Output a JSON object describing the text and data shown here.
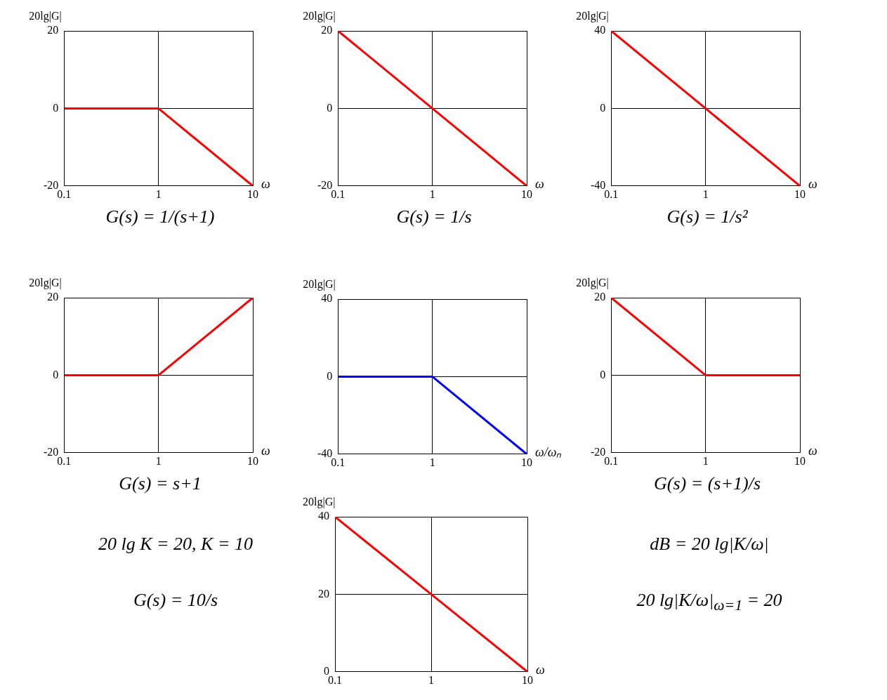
{
  "chart_data": [
    {
      "type": "line",
      "ylabel": "20lg|G|",
      "xlabel": "ω",
      "x": [
        0.1,
        1,
        10
      ],
      "series": [
        {
          "color": "#ff0000",
          "values": [
            0,
            0,
            -20
          ]
        }
      ],
      "xlim": [
        0.1,
        10
      ],
      "xticks": [
        0.1,
        1,
        10
      ],
      "ylim": [
        -20,
        20
      ],
      "yticks": [
        -20,
        0,
        20
      ],
      "log": "x",
      "grid": true,
      "legend": false,
      "marker": "none",
      "line_style": "solid",
      "annotations": [
        "G(s) = 1/(s+1)"
      ]
    },
    {
      "type": "line",
      "ylabel": "20lg|G|",
      "xlabel": "ω",
      "x": [
        0.1,
        1,
        10
      ],
      "series": [
        {
          "color": "#ff0000",
          "values": [
            20,
            0,
            -20
          ]
        }
      ],
      "xlim": [
        0.1,
        10
      ],
      "xticks": [
        0.1,
        1,
        10
      ],
      "ylim": [
        -20,
        20
      ],
      "yticks": [
        -20,
        0,
        20
      ],
      "log": "x",
      "grid": true,
      "legend": false,
      "marker": "none",
      "line_style": "solid",
      "annotations": [
        "G(s) = 1/s"
      ]
    },
    {
      "type": "line",
      "ylabel": "20lg|G|",
      "xlabel": "ω",
      "x": [
        0.1,
        1,
        10
      ],
      "series": [
        {
          "color": "#ff0000",
          "values": [
            40,
            0,
            -40
          ]
        }
      ],
      "xlim": [
        0.1,
        10
      ],
      "xticks": [
        0.1,
        1,
        10
      ],
      "ylim": [
        -40,
        40
      ],
      "yticks": [
        -40,
        0,
        40
      ],
      "log": "x",
      "grid": true,
      "legend": false,
      "marker": "none",
      "line_style": "solid",
      "annotations": [
        "G(s) = 1/s²"
      ]
    },
    {
      "type": "line",
      "ylabel": "20lg|G|",
      "xlabel": "ω",
      "x": [
        0.1,
        1,
        10
      ],
      "series": [
        {
          "color": "#ff0000",
          "values": [
            0,
            0,
            20
          ]
        }
      ],
      "xlim": [
        0.1,
        10
      ],
      "xticks": [
        0.1,
        1,
        10
      ],
      "ylim": [
        -20,
        20
      ],
      "yticks": [
        -20,
        0,
        20
      ],
      "log": "x",
      "grid": true,
      "legend": false,
      "marker": "none",
      "line_style": "solid",
      "annotations": [
        "G(s) = s+1"
      ]
    },
    {
      "type": "line",
      "ylabel": "20lg|G|",
      "xlabel": "ω/ωₙ",
      "x": [
        0.1,
        1,
        10
      ],
      "series": [
        {
          "color": "#0000ff",
          "values": [
            0,
            0,
            -40
          ]
        }
      ],
      "xlim": [
        0.1,
        10
      ],
      "xticks": [
        0.1,
        1,
        10
      ],
      "ylim": [
        -40,
        40
      ],
      "yticks": [
        -40,
        0,
        40
      ],
      "log": "x",
      "grid": true,
      "legend": false,
      "marker": "none",
      "line_style": "solid"
    },
    {
      "type": "line",
      "ylabel": "20lg|G|",
      "xlabel": "ω",
      "x": [
        0.1,
        1,
        10
      ],
      "series": [
        {
          "color": "#ff0000",
          "values": [
            20,
            0,
            0
          ]
        }
      ],
      "xlim": [
        0.1,
        10
      ],
      "xticks": [
        0.1,
        1,
        10
      ],
      "ylim": [
        -20,
        20
      ],
      "yticks": [
        -20,
        0,
        20
      ],
      "log": "x",
      "grid": true,
      "legend": false,
      "marker": "none",
      "line_style": "solid",
      "annotations": [
        "G(s) = (s+1)/s"
      ]
    },
    {
      "type": "line",
      "ylabel": "20lg|G|",
      "xlabel": "ω",
      "x": [
        0.1,
        1,
        10
      ],
      "series": [
        {
          "color": "#ff0000",
          "values": [
            40,
            20,
            0
          ]
        }
      ],
      "xlim": [
        0.1,
        10
      ],
      "xticks": [
        0.1,
        1,
        10
      ],
      "ylim": [
        0,
        40
      ],
      "yticks": [
        0,
        20,
        40
      ],
      "log": "x",
      "grid": true,
      "legend": false,
      "marker": "none",
      "line_style": "solid",
      "annotations": [
        "20 lg K = 20, K = 10",
        "G(s) = 10/s",
        "dB = 20 lg|K/ω|",
        "20 lg|K/ω|$_{ω=1}$ = 20"
      ]
    }
  ]
}
